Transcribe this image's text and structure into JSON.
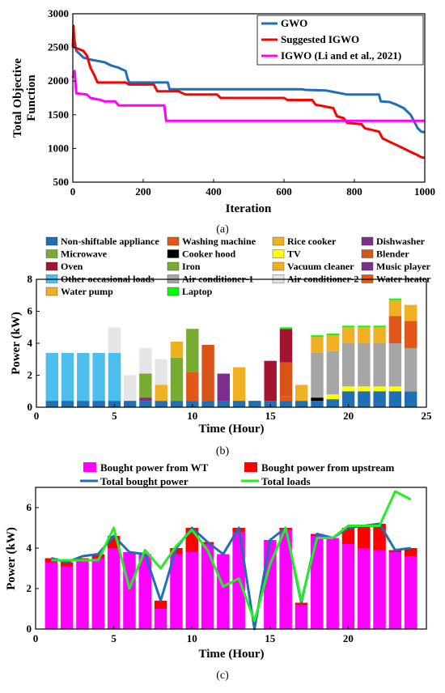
{
  "chart_data": [
    {
      "id": "a",
      "type": "line",
      "caption": "(a)",
      "xlabel": "Iteration",
      "ylabel": "Total Objective Function",
      "xlim": [
        0,
        1000
      ],
      "ylim": [
        500,
        3000
      ],
      "xticks": [
        "0",
        "200",
        "400",
        "600",
        "800",
        "1000"
      ],
      "yticks": [
        "500",
        "1000",
        "1500",
        "2000",
        "2500",
        "3000"
      ],
      "legend_position": "top-right",
      "series": [
        {
          "name": "GWO",
          "color": "#1f6fb5",
          "points": [
            [
              0,
              2550
            ],
            [
              5,
              2600
            ],
            [
              10,
              2450
            ],
            [
              20,
              2400
            ],
            [
              30,
              2350
            ],
            [
              50,
              2320
            ],
            [
              70,
              2300
            ],
            [
              90,
              2280
            ],
            [
              110,
              2230
            ],
            [
              130,
              2200
            ],
            [
              150,
              2150
            ],
            [
              155,
              2050
            ],
            [
              160,
              1980
            ],
            [
              270,
              1980
            ],
            [
              275,
              1880
            ],
            [
              650,
              1880
            ],
            [
              660,
              1870
            ],
            [
              720,
              1860
            ],
            [
              740,
              1840
            ],
            [
              760,
              1820
            ],
            [
              780,
              1800
            ],
            [
              870,
              1800
            ],
            [
              875,
              1700
            ],
            [
              900,
              1690
            ],
            [
              920,
              1650
            ],
            [
              940,
              1600
            ],
            [
              960,
              1500
            ],
            [
              970,
              1400
            ],
            [
              980,
              1300
            ],
            [
              990,
              1250
            ],
            [
              1000,
              1240
            ]
          ]
        },
        {
          "name": "Suggested IGWO",
          "color": "#ff0000",
          "points": [
            [
              0,
              2500
            ],
            [
              2,
              2820
            ],
            [
              5,
              2500
            ],
            [
              30,
              2450
            ],
            [
              40,
              2380
            ],
            [
              50,
              2200
            ],
            [
              60,
              2100
            ],
            [
              70,
              1980
            ],
            [
              150,
              1980
            ],
            [
              160,
              1950
            ],
            [
              230,
              1950
            ],
            [
              240,
              1850
            ],
            [
              300,
              1850
            ],
            [
              320,
              1800
            ],
            [
              410,
              1800
            ],
            [
              420,
              1750
            ],
            [
              600,
              1750
            ],
            [
              610,
              1720
            ],
            [
              680,
              1720
            ],
            [
              690,
              1650
            ],
            [
              740,
              1600
            ],
            [
              750,
              1480
            ],
            [
              770,
              1450
            ],
            [
              780,
              1380
            ],
            [
              820,
              1360
            ],
            [
              830,
              1300
            ],
            [
              870,
              1250
            ],
            [
              880,
              1150
            ],
            [
              900,
              1100
            ],
            [
              920,
              1050
            ],
            [
              940,
              1000
            ],
            [
              960,
              950
            ],
            [
              980,
              900
            ],
            [
              990,
              870
            ],
            [
              1000,
              860
            ]
          ]
        },
        {
          "name": "IGWO (Li and et al., 2021)",
          "color": "#ff00ff",
          "points": [
            [
              0,
              2050
            ],
            [
              5,
              2150
            ],
            [
              10,
              1820
            ],
            [
              40,
              1800
            ],
            [
              50,
              1750
            ],
            [
              80,
              1720
            ],
            [
              90,
              1700
            ],
            [
              120,
              1700
            ],
            [
              130,
              1640
            ],
            [
              260,
              1640
            ],
            [
              265,
              1410
            ],
            [
              1000,
              1410
            ]
          ]
        }
      ]
    },
    {
      "id": "b",
      "type": "bar",
      "stacked": true,
      "caption": "(b)",
      "xlabel": "Time (Hour)",
      "ylabel": "Power (kW)",
      "xlim": [
        0,
        25
      ],
      "ylim": [
        0,
        8
      ],
      "xticks": [
        "0",
        "5",
        "10",
        "15",
        "20",
        "25"
      ],
      "yticks": [
        "0",
        "2",
        "4",
        "6",
        "8"
      ],
      "legend_position": "top (above plot)",
      "categories": [
        1,
        2,
        3,
        4,
        5,
        6,
        7,
        8,
        9,
        10,
        11,
        12,
        13,
        14,
        15,
        16,
        17,
        18,
        19,
        20,
        21,
        22,
        23,
        24
      ],
      "series": [
        {
          "name": "Non-shiftable appliance",
          "color": "#1f6fb5",
          "values": [
            0.4,
            0.4,
            0.4,
            0.4,
            0.4,
            0.4,
            0.4,
            0.4,
            0.4,
            0.4,
            0.4,
            0.4,
            0.4,
            0.4,
            0.4,
            0.4,
            0.4,
            0.4,
            0.5,
            1.0,
            1.0,
            1.0,
            1.0,
            1.0
          ]
        },
        {
          "name": "Washing machine",
          "color": "#e1581a",
          "values": [
            0,
            0,
            0,
            0,
            0,
            0,
            0,
            0,
            0,
            1.8,
            0,
            0,
            0,
            0,
            0,
            0.3,
            0,
            0,
            0,
            0,
            0,
            0,
            0,
            0
          ]
        },
        {
          "name": "Rice cooker",
          "color": "#f0b023",
          "values": [
            0,
            0,
            0,
            0,
            0,
            0,
            0,
            1.0,
            0,
            0,
            0,
            0,
            2.1,
            0,
            0,
            0,
            1.0,
            0,
            0,
            0,
            0,
            0,
            0,
            0
          ]
        },
        {
          "name": "Dishwasher",
          "color": "#7e2f8e",
          "values": [
            0,
            0,
            0,
            0,
            0,
            0,
            0.2,
            0,
            0,
            0,
            0,
            1.7,
            0,
            0,
            0,
            0,
            0,
            0,
            0,
            0,
            0,
            0,
            0,
            0
          ]
        },
        {
          "name": "Microwave",
          "color": "#77ac30",
          "values": [
            0,
            0,
            0,
            0,
            0,
            0,
            0,
            0,
            2.7,
            0,
            0,
            0,
            0,
            0,
            0,
            0,
            0,
            0,
            0,
            0,
            0,
            0,
            0,
            0
          ]
        },
        {
          "name": "Cooker hood",
          "color": "#000000",
          "values": [
            0,
            0,
            0,
            0,
            0,
            0,
            0,
            0,
            0,
            0,
            0,
            0,
            0,
            0,
            0,
            0,
            0,
            0.2,
            0,
            0,
            0,
            0,
            0,
            0
          ]
        },
        {
          "name": "TV",
          "color": "#ffff00",
          "values": [
            0,
            0,
            0,
            0,
            0,
            0,
            0,
            0,
            0,
            0,
            0,
            0,
            0,
            0,
            0,
            0,
            0,
            0,
            0.3,
            0.3,
            0.3,
            0.3,
            0.3,
            0
          ]
        },
        {
          "name": "Blender",
          "color": "#d95319",
          "values": [
            0,
            0,
            0,
            0,
            0,
            0,
            0,
            0,
            0,
            0,
            3.5,
            0,
            0,
            0,
            0,
            2.1,
            0,
            0,
            0,
            0,
            0,
            0,
            0,
            0
          ]
        },
        {
          "name": "Oven",
          "color": "#a2142f",
          "values": [
            0,
            0,
            0,
            0,
            0,
            0,
            0,
            0,
            0,
            0,
            0,
            0,
            0,
            0,
            2.5,
            2.1,
            0,
            0,
            0,
            0,
            0,
            0,
            0,
            0
          ]
        },
        {
          "name": "Iron",
          "color": "#77ac30",
          "values": [
            0,
            0,
            0,
            0,
            0,
            0,
            1.5,
            0,
            0,
            2.7,
            0,
            0,
            0,
            0,
            0,
            0,
            0,
            0,
            0,
            0,
            0,
            0,
            0,
            0
          ]
        },
        {
          "name": "Vacuum cleaner",
          "color": "#edb120",
          "values": [
            0,
            0,
            0,
            0,
            0,
            0,
            0,
            0,
            1.0,
            0,
            0,
            0,
            0,
            0,
            0,
            0,
            0,
            0,
            0,
            0,
            0,
            0,
            0,
            0
          ]
        },
        {
          "name": "Music player",
          "color": "#7e2f8e",
          "values": [
            0,
            0,
            0,
            0,
            0,
            0,
            0,
            0,
            0,
            0,
            0,
            0,
            0,
            0,
            0,
            0,
            0,
            0,
            0,
            0,
            0,
            0,
            0,
            0
          ]
        },
        {
          "name": "Other occasional loads",
          "color": "#4dbeee",
          "values": [
            3.0,
            3.0,
            3.0,
            3.0,
            3.0,
            0,
            0,
            0,
            0,
            0,
            0,
            0,
            0,
            0,
            0,
            0,
            0,
            0,
            0,
            0,
            0,
            0,
            0,
            0
          ]
        },
        {
          "name": "Air conditioner-1",
          "color": "#a6a6a6",
          "values": [
            0,
            0,
            0,
            0,
            0,
            0,
            0,
            0,
            0,
            0,
            0,
            0,
            0,
            0,
            0,
            0,
            0,
            2.8,
            2.7,
            2.7,
            2.7,
            2.7,
            2.7,
            2.7
          ]
        },
        {
          "name": "Air conditioner-2",
          "color": "#e5e5e5",
          "values": [
            0,
            0,
            0,
            0,
            1.6,
            1.6,
            1.6,
            1.6,
            0,
            0,
            0,
            0,
            0,
            0,
            0,
            0,
            0,
            0,
            0,
            0,
            0,
            0,
            0,
            0
          ]
        },
        {
          "name": "Water heater",
          "color": "#e1581a",
          "values": [
            0,
            0,
            0,
            0,
            0,
            0,
            0,
            0,
            0,
            0,
            0,
            0,
            0,
            0,
            0,
            0,
            0,
            0,
            0,
            0,
            0,
            0,
            1.7,
            1.7
          ]
        },
        {
          "name": "Water pump",
          "color": "#f0b023",
          "values": [
            0,
            0,
            0,
            0,
            0,
            0,
            0,
            0,
            0,
            0,
            0,
            0,
            0,
            0,
            0,
            0,
            0,
            1.0,
            1.0,
            1.0,
            1.0,
            1.0,
            1.0,
            1.0
          ]
        },
        {
          "name": "Laptop",
          "color": "#00ff00",
          "values": [
            0,
            0,
            0,
            0,
            0,
            0,
            0,
            0,
            0,
            0,
            0,
            0,
            0,
            0,
            0,
            0.1,
            0,
            0.1,
            0.1,
            0.1,
            0.1,
            0.1,
            0.1,
            0
          ]
        }
      ]
    },
    {
      "id": "c",
      "type": "bar",
      "stacked": true,
      "caption": "(c)",
      "xlabel": "Time (Hour)",
      "ylabel": "Power (kW)",
      "xlim": [
        0,
        25
      ],
      "ylim": [
        0,
        7
      ],
      "xticks": [
        "0",
        "5",
        "10",
        "15",
        "20"
      ],
      "yticks": [
        "0",
        "2",
        "4",
        "6"
      ],
      "legend_position": "top (above plot)",
      "categories": [
        1,
        2,
        3,
        4,
        5,
        6,
        7,
        8,
        9,
        10,
        11,
        12,
        13,
        14,
        15,
        16,
        17,
        18,
        19,
        20,
        21,
        22,
        23,
        24
      ],
      "series": [
        {
          "name": "Bought power from WT",
          "color": "#ff00ff",
          "values": [
            3.3,
            3.1,
            3.4,
            3.5,
            4.0,
            3.8,
            3.7,
            1.0,
            3.7,
            3.8,
            4.2,
            3.7,
            4.8,
            0,
            4.4,
            4.9,
            1.2,
            4.6,
            4.5,
            4.2,
            4.0,
            3.9,
            3.8,
            3.6
          ]
        },
        {
          "name": "Bought power from upstream",
          "color": "#ff0000",
          "values": [
            0.2,
            0.2,
            0.1,
            0.2,
            0.6,
            0,
            0,
            0.4,
            0.3,
            1.2,
            0.1,
            0,
            0.2,
            0,
            0,
            0.1,
            0.1,
            0.1,
            0,
            0.8,
            1.1,
            1.3,
            0.1,
            0.4
          ]
        }
      ],
      "lines": [
        {
          "name": "Total bought power",
          "color": "#1f6fb5",
          "values": [
            3.5,
            3.3,
            3.6,
            3.7,
            4.6,
            3.8,
            3.7,
            1.4,
            4.0,
            5.0,
            4.3,
            3.7,
            5.0,
            0,
            4.4,
            5.0,
            1.3,
            4.7,
            4.5,
            5.0,
            5.1,
            5.2,
            3.9,
            4.0
          ]
        },
        {
          "name": "Total loads",
          "color": "#22ee22",
          "values": [
            3.4,
            3.4,
            3.4,
            3.4,
            5.0,
            2.0,
            3.9,
            3.0,
            4.1,
            4.9,
            3.9,
            2.1,
            2.5,
            0.4,
            3.2,
            5.0,
            1.4,
            4.5,
            4.5,
            5.1,
            5.1,
            5.1,
            6.8,
            6.4
          ]
        }
      ]
    }
  ]
}
